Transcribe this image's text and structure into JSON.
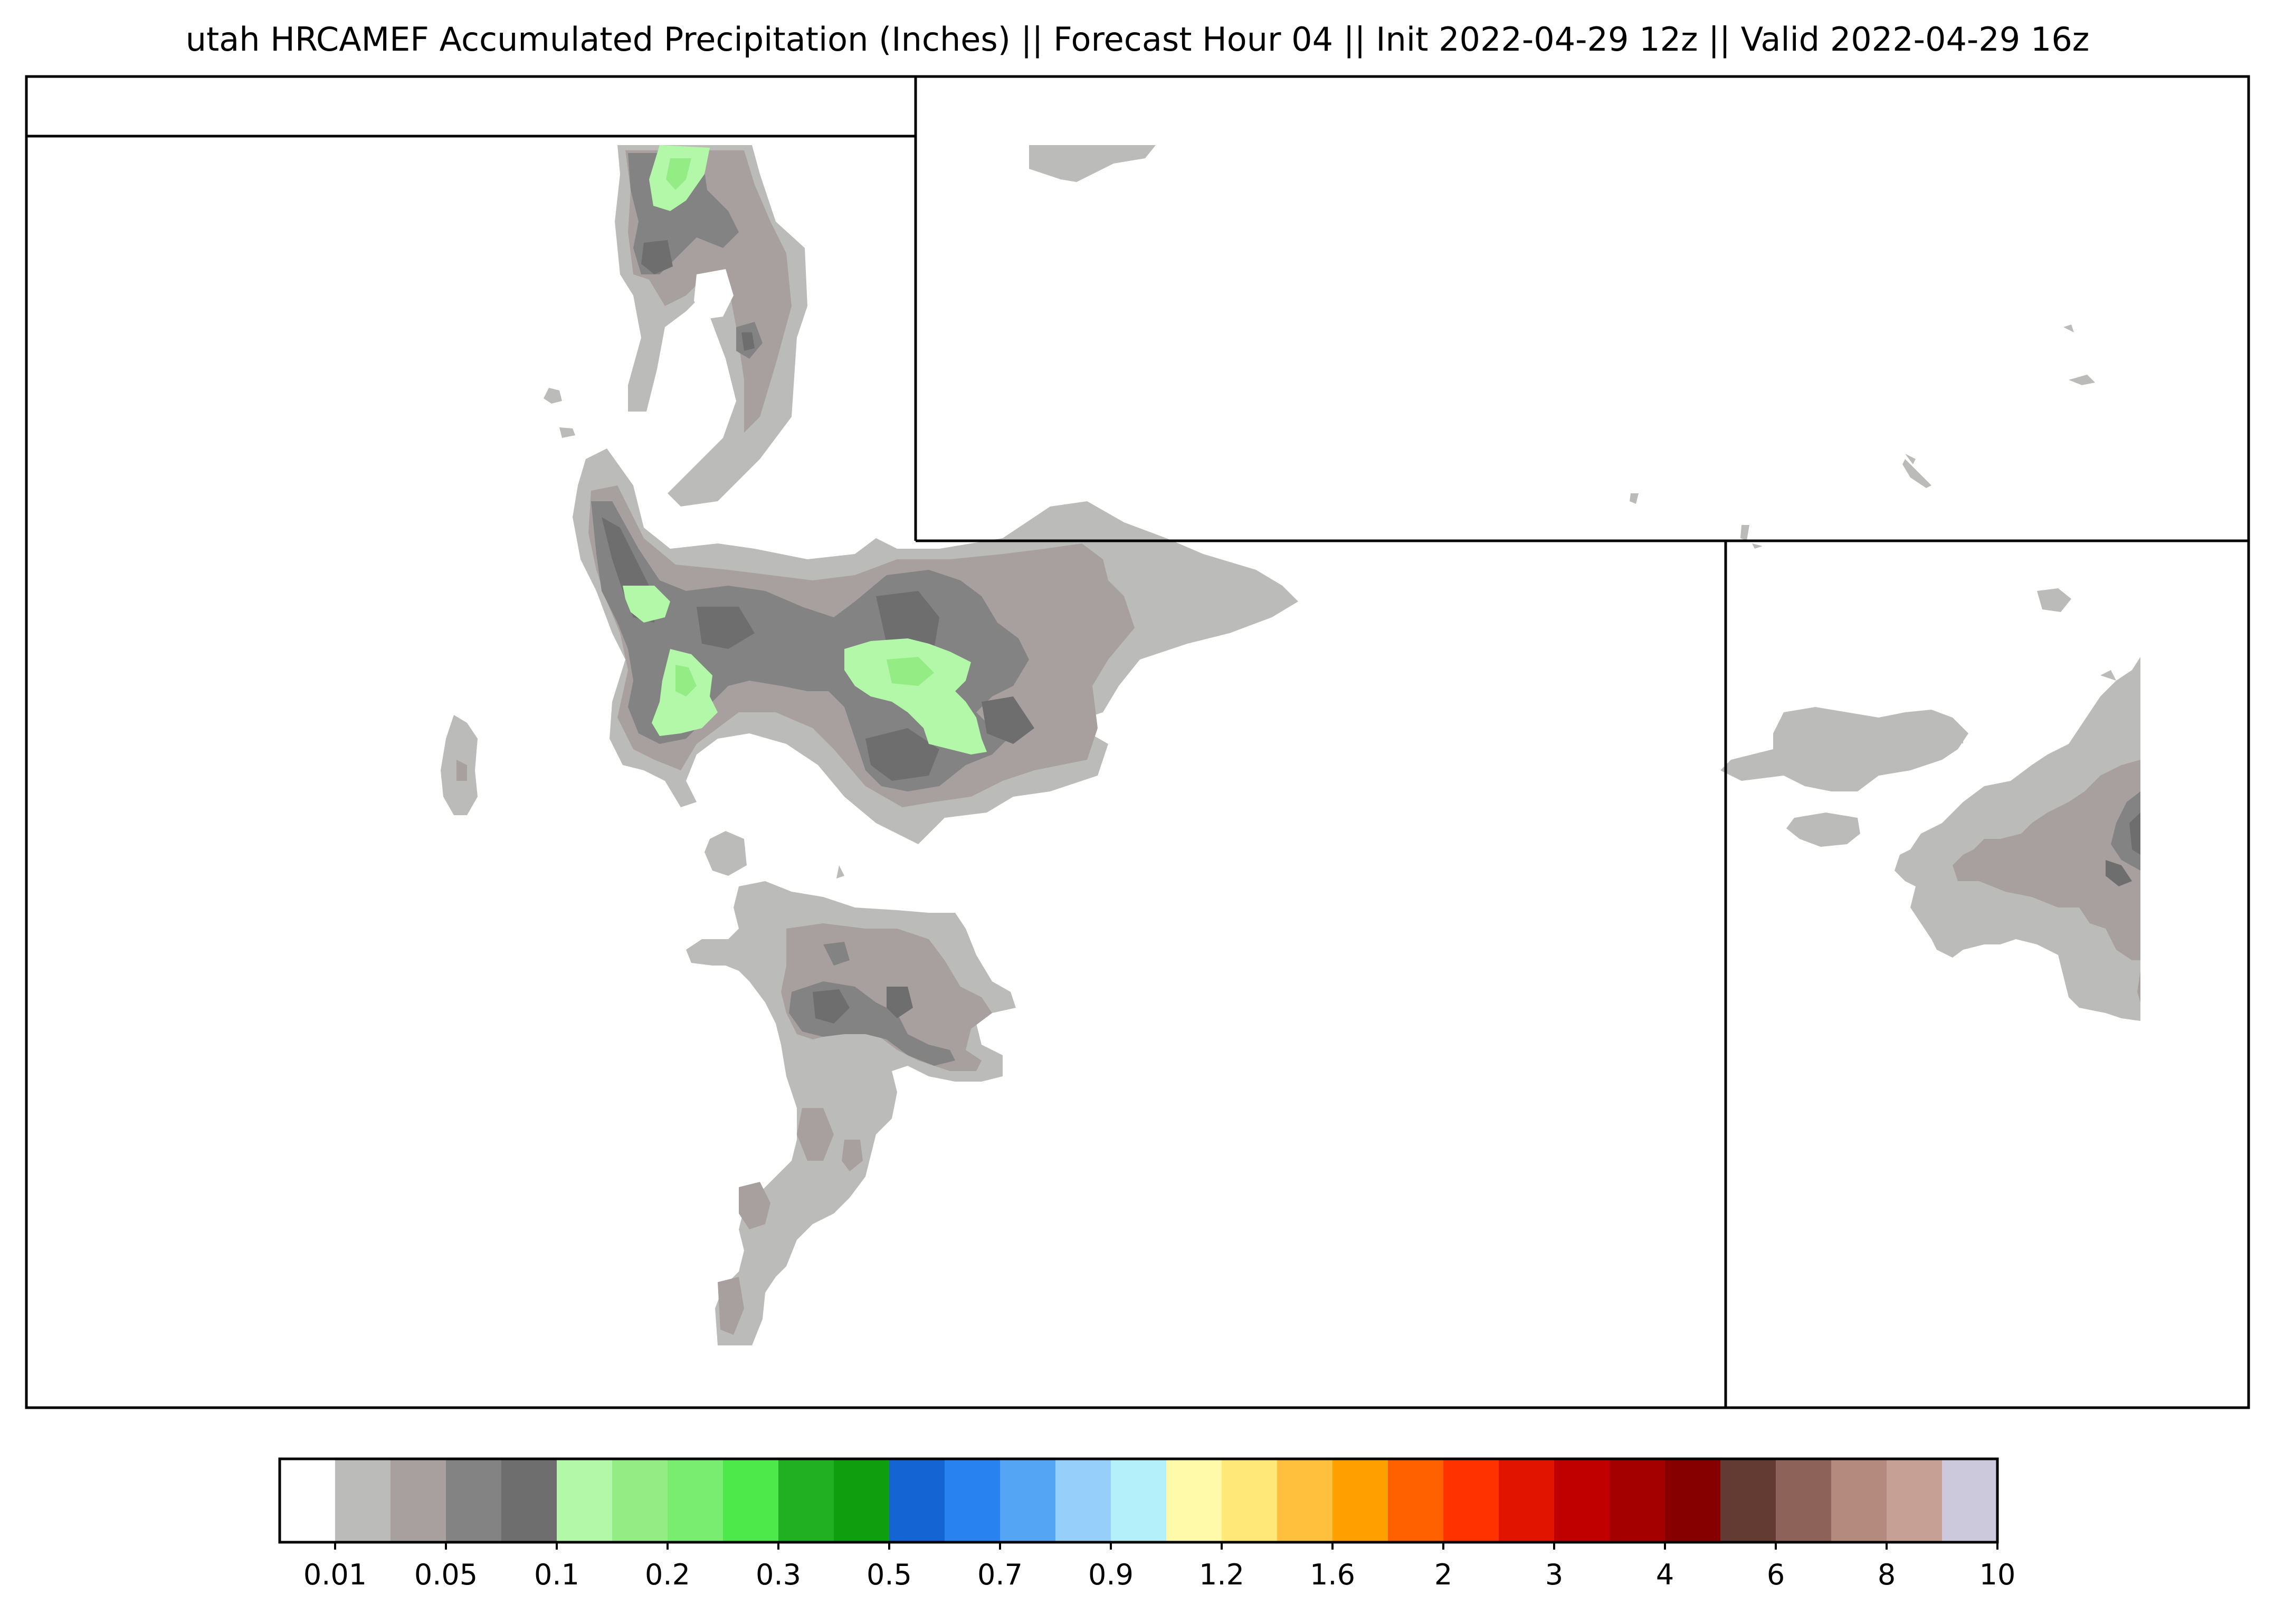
{
  "title": "utah HRCAMEF Accumulated Precipitation (Inches) || Forecast Hour 04 || Init 2022-04-29 12z || Valid 2022-04-29 16z",
  "colorbar": {
    "colors": [
      "#ffffff",
      "#bbbcb9",
      "#a7a09f",
      "#838383",
      "#6e6e6e",
      "#b2f8a8",
      "#93ec84",
      "#79ed70",
      "#4de849",
      "#22b023",
      "#0f9f0e",
      "#1464d3",
      "#2882ef",
      "#54a5f4",
      "#96d0fa",
      "#b3f0fa",
      "#fffaaa",
      "#ffe878",
      "#ffc03d",
      "#ffa000",
      "#ff6000",
      "#ff3200",
      "#e11400",
      "#c00000",
      "#a50000",
      "#870000",
      "#643b32",
      "#8d6359",
      "#b48a7e",
      "#c7a095",
      "#cdc9dc"
    ],
    "tick_labels": [
      "0.01",
      "0.05",
      "0.1",
      "0.2",
      "0.3",
      "0.5",
      "0.7",
      "0.9",
      "1.2",
      "1.6",
      "2",
      "3",
      "4",
      "6",
      "8",
      "10"
    ]
  }
}
